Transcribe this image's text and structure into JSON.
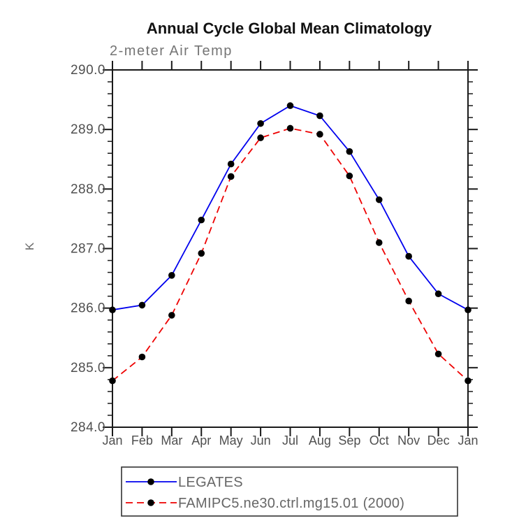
{
  "chart_data": {
    "type": "line",
    "title": "Annual Cycle Global Mean Climatology",
    "subtitle": "2-meter Air Temp",
    "ylabel": "K",
    "xlabel": "",
    "categories": [
      "Jan",
      "Feb",
      "Mar",
      "Apr",
      "May",
      "Jun",
      "Jul",
      "Aug",
      "Sep",
      "Oct",
      "Nov",
      "Dec",
      "Jan"
    ],
    "series": [
      {
        "name": "LEGATES",
        "color": "#0000ee",
        "line_style": "solid",
        "marker": "filled-circle",
        "marker_color": "#000000",
        "values": [
          285.97,
          286.05,
          286.55,
          287.48,
          288.42,
          289.1,
          289.4,
          289.23,
          288.63,
          287.82,
          286.87,
          286.24,
          285.97
        ]
      },
      {
        "name": "FAMIPC5.ne30.ctrl.mg15.01 (2000)",
        "color": "#ee0000",
        "line_style": "dashed",
        "marker": "filled-circle",
        "marker_color": "#000000",
        "values": [
          284.78,
          285.18,
          285.88,
          286.92,
          288.21,
          288.86,
          289.02,
          288.92,
          288.22,
          287.1,
          286.12,
          285.23,
          284.78
        ]
      }
    ],
    "ylim": [
      284.0,
      290.0
    ],
    "ytick_interval": 1.0,
    "yminor_interval": 0.2,
    "yticks": [
      {
        "label": "290.0",
        "value": 290.0
      },
      {
        "label": "289.0",
        "value": 289.0
      },
      {
        "label": "288.0",
        "value": 288.0
      },
      {
        "label": "287.0",
        "value": 287.0
      },
      {
        "label": "286.0",
        "value": 286.0
      },
      {
        "label": "285.0",
        "value": 285.0
      },
      {
        "label": "284.0",
        "value": 284.0
      }
    ],
    "grid": false,
    "legend_position": "bottom",
    "colors": {
      "axis": "#1a1a1a",
      "tick_label_text": "#4f4f4f",
      "legend_text": "#666666",
      "title_text": "#111111"
    }
  }
}
